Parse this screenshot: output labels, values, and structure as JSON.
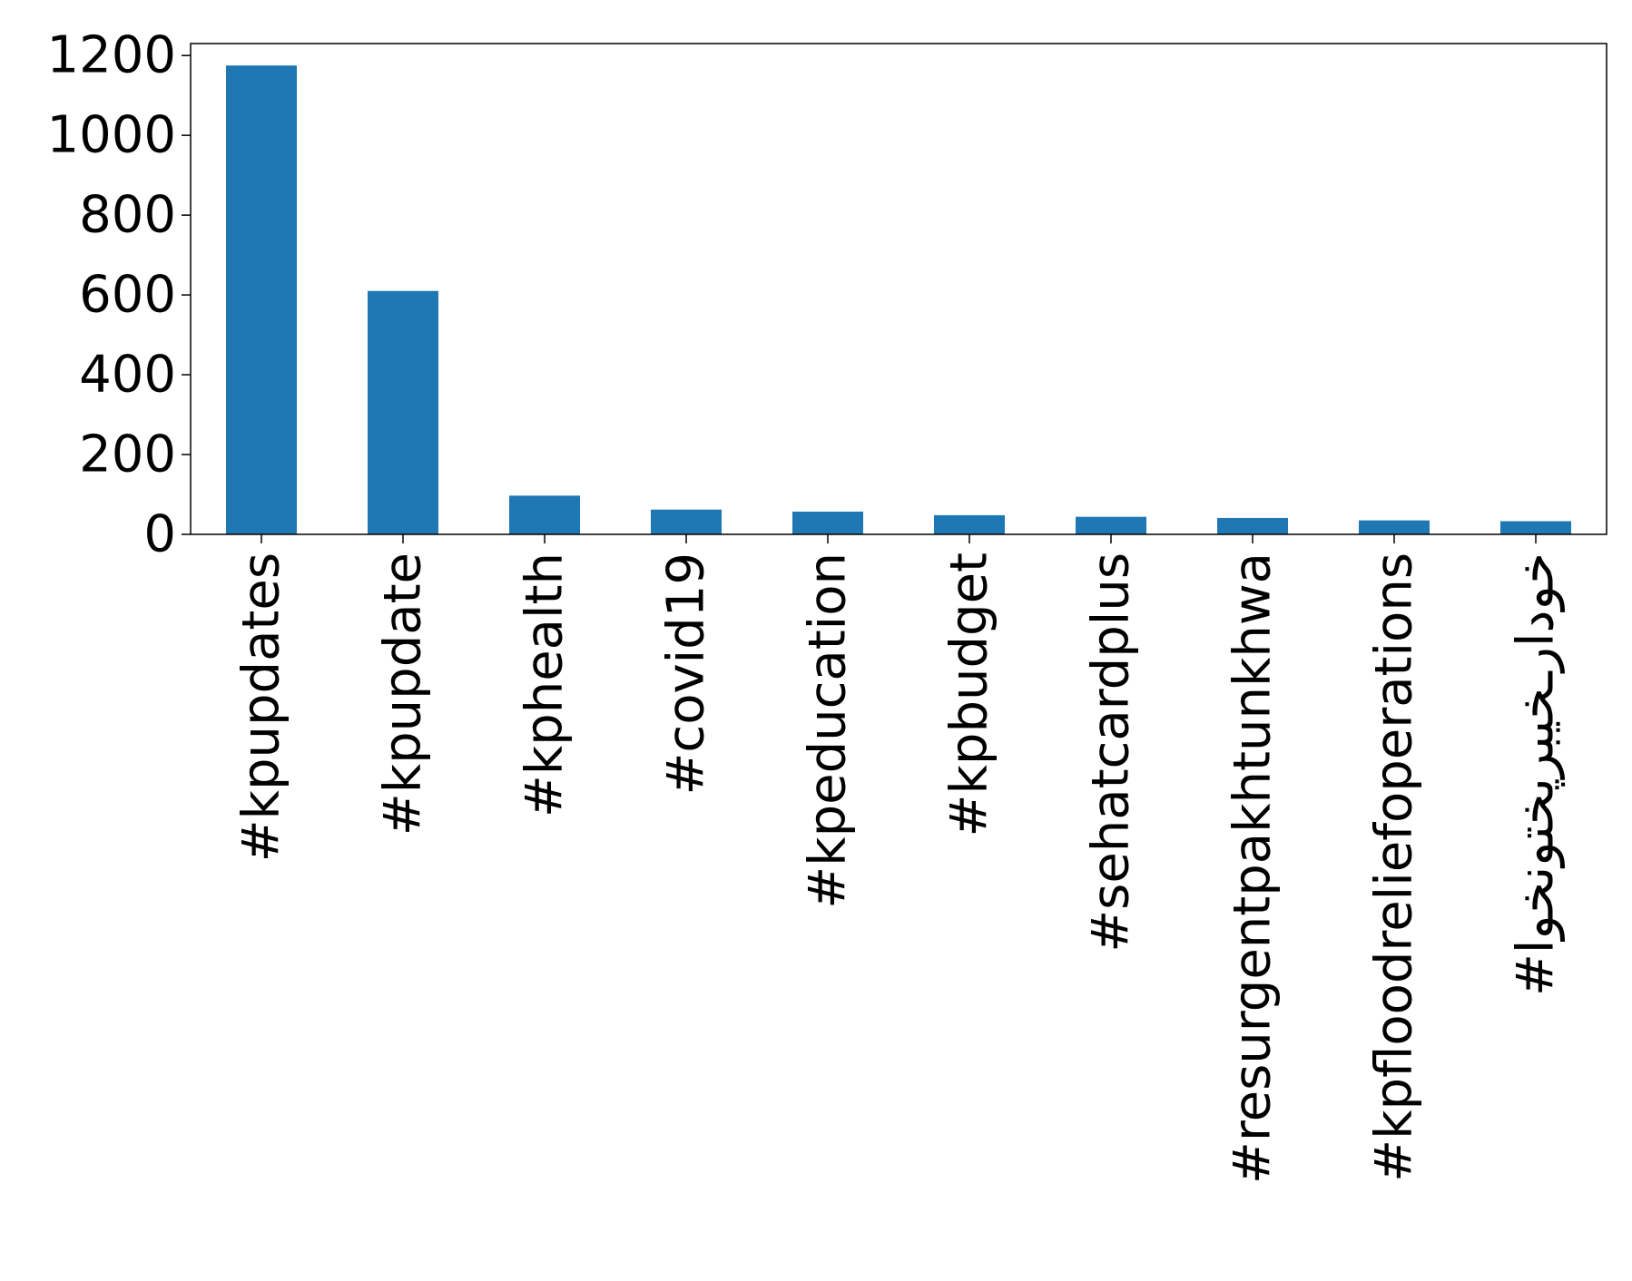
{
  "chart_data": {
    "type": "bar",
    "categories": [
      "#kpupdates",
      "#kpupdate",
      "#kphealth",
      "#covid19",
      "#kpeducation",
      "#kpbudget",
      "#sehatcardplus",
      "#resurgentpakhtunkhwa",
      "#kpfloodreliefoperations",
      "#خودارـخیبرپختونخوا"
    ],
    "values": [
      1175,
      610,
      97,
      62,
      57,
      48,
      44,
      41,
      35,
      33
    ],
    "ylim": [
      0,
      1230
    ],
    "yticks": [
      0,
      200,
      400,
      600,
      800,
      1000,
      1200
    ],
    "bar_color": "#1f77b4",
    "grid": false,
    "legend": false,
    "title": "",
    "xlabel": "",
    "ylabel": ""
  }
}
